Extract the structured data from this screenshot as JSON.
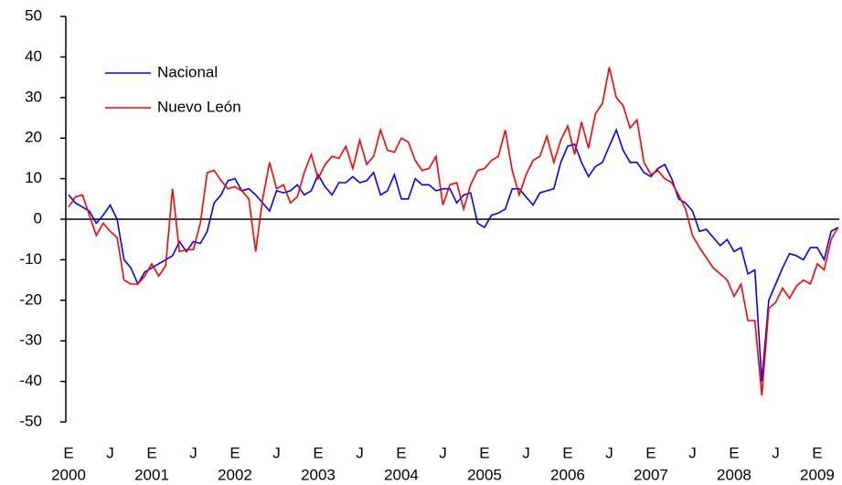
{
  "chart_data": {
    "type": "line",
    "categories": [
      "E",
      null,
      null,
      null,
      null,
      null,
      "J",
      null,
      null,
      null,
      null,
      null,
      "E",
      null,
      null,
      null,
      null,
      null,
      "J",
      null,
      null,
      null,
      null,
      null,
      "E",
      null,
      null,
      null,
      null,
      null,
      "J",
      null,
      null,
      null,
      null,
      null,
      "E",
      null,
      null,
      null,
      null,
      null,
      "J",
      null,
      null,
      null,
      null,
      null,
      "E",
      null,
      null,
      null,
      null,
      null,
      "J",
      null,
      null,
      null,
      null,
      null,
      "E",
      null,
      null,
      null,
      null,
      null,
      "J",
      null,
      null,
      null,
      null,
      null,
      "E",
      null,
      null,
      null,
      null,
      null,
      "J",
      null,
      null,
      null,
      null,
      null,
      "E",
      null,
      null,
      null,
      null,
      null,
      "J",
      null,
      null,
      null,
      null,
      null,
      "E",
      null,
      null,
      null,
      null,
      null,
      "J",
      null,
      null,
      null,
      null,
      null,
      "E",
      null,
      null,
      null
    ],
    "years": [
      "2000",
      "2001",
      "2002",
      "2003",
      "2004",
      "2005",
      "2006",
      "2007",
      "2008",
      "2009"
    ],
    "series": [
      {
        "name": "Nacional",
        "color": "#0000ff",
        "values": [
          6,
          4,
          3,
          2,
          -1,
          1,
          3.5,
          0,
          -10,
          -12,
          -16,
          -13,
          -12,
          -11,
          -10,
          -9,
          -5.5,
          -8,
          -5.5,
          -6,
          -3,
          4,
          6,
          9.5,
          10,
          7,
          7.5,
          6,
          4,
          2,
          7,
          6.5,
          7,
          8.5,
          6,
          7,
          11,
          8,
          6,
          9,
          9,
          10.5,
          9,
          9.5,
          11.5,
          6,
          7,
          11,
          5,
          5,
          10,
          8.5,
          8.5,
          7,
          7.5,
          7.5,
          4,
          6,
          6.5,
          -1,
          -2,
          1,
          1.5,
          2.5,
          7.5,
          7.5,
          5.5,
          3.5,
          6.5,
          7,
          7.5,
          14,
          18,
          18.5,
          14,
          10.5,
          13,
          14,
          18,
          22,
          17,
          14,
          14,
          11.5,
          10.5,
          12.5,
          13.5,
          10,
          5,
          4,
          2,
          -3,
          -2.5,
          -4.5,
          -6.5,
          -5,
          -8,
          -7,
          -13.5,
          -12.5,
          -40,
          -20,
          -16,
          -12,
          -8.5,
          -9,
          -10,
          -7,
          -7,
          -10,
          -3,
          -2
        ]
      },
      {
        "name": "Nuevo León",
        "color": "#ff0000",
        "values": [
          3,
          5.5,
          6,
          1,
          -4,
          -1,
          -3,
          -4.5,
          -15,
          -16,
          -16,
          -14,
          -11,
          -14,
          -11.5,
          7.5,
          -8,
          -7.5,
          -7.5,
          -1,
          11.5,
          12,
          9.5,
          7.5,
          8,
          7,
          5,
          -8,
          5,
          14,
          7.5,
          8.5,
          4,
          5.5,
          11.5,
          16,
          10,
          13.5,
          15.5,
          15,
          18,
          12.5,
          19.5,
          13.5,
          15.5,
          22,
          17,
          16.5,
          20,
          19,
          14.5,
          12,
          12.5,
          15.5,
          3.5,
          8.5,
          9,
          2.5,
          8.5,
          12,
          12.5,
          14.5,
          15.5,
          22,
          12,
          6,
          11,
          14.5,
          15.5,
          20.5,
          14,
          19.5,
          23,
          16,
          24,
          17.5,
          26,
          28.5,
          37.5,
          30,
          28,
          22.5,
          24.5,
          14,
          11,
          12,
          10,
          9,
          6,
          2.5,
          -4,
          -7,
          -9.5,
          -12,
          -13.5,
          -15,
          -19,
          -16,
          -25,
          -25,
          -43.5,
          -22,
          -20.5,
          -17,
          -19.5,
          -16.5,
          -15,
          -16,
          -11,
          -12.5,
          -5,
          -2
        ]
      }
    ],
    "ylim": [
      -50,
      50
    ],
    "yticks": [
      -50,
      -40,
      -30,
      -20,
      -10,
      0,
      10,
      20,
      30,
      40,
      50
    ],
    "legend": "upper left",
    "grid": false
  }
}
